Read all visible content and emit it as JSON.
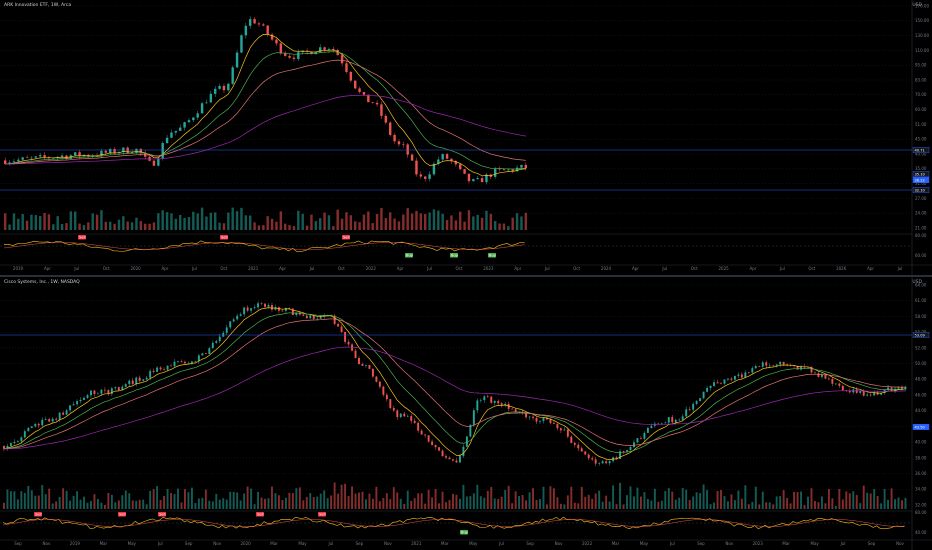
{
  "colors": {
    "background": "#000000",
    "candle_up": "#26a69a",
    "candle_down": "#ef5350",
    "ma_fast": "#f7c31d",
    "ma_mid": "#4caf50",
    "ma_slow": "#e57373",
    "ma_long": "#9c27b0",
    "level_line": "#2962ff",
    "sell_tag": "#f23645",
    "buy_tag": "#4caf50",
    "grid": "#1e222d"
  },
  "top_chart": {
    "legend": "ARK Innovation ETF, 1W, Arca",
    "unit": "USD",
    "price_ticks": [
      "170.00",
      "150.00",
      "130.00",
      "110.00",
      "95.00",
      "83.00",
      "70.00",
      "60.00",
      "51.00",
      "45.00",
      "40.00",
      "35.00",
      "31.00",
      "27.00",
      "24.00",
      "21.00"
    ],
    "price_tags": [
      {
        "label": "40.71",
        "kind": "level",
        "value": 40.71
      },
      {
        "label": "35.10",
        "kind": "level",
        "value": 35.1
      },
      {
        "label": "36.22",
        "kind": "last",
        "value": 36.22
      },
      {
        "label": "32.10",
        "kind": "level",
        "value": 32.1
      }
    ],
    "time_ticks": [
      "2019",
      "Apr",
      "Jul",
      "Oct",
      "2020",
      "Apr",
      "Jul",
      "Oct",
      "2021",
      "Apr",
      "Jul",
      "Oct",
      "2022",
      "Apr",
      "Jul",
      "Oct",
      "2023",
      "Apr",
      "Jul",
      "Oct",
      "2024",
      "Apr",
      "Jul",
      "Oct",
      "2025",
      "Apr",
      "Jul",
      "Oct",
      "2026",
      "Apr",
      "Jul"
    ],
    "indicator_tags": [
      {
        "label": "Sell",
        "kind": "sell"
      },
      {
        "label": "Sell",
        "kind": "sell"
      },
      {
        "label": "Sell",
        "kind": "sell"
      },
      {
        "label": "Buy",
        "kind": "buy"
      },
      {
        "label": "Buy",
        "kind": "buy"
      },
      {
        "label": "Buy",
        "kind": "buy"
      }
    ],
    "osc_ticks": [
      "80.00",
      "60.00"
    ]
  },
  "bottom_chart": {
    "legend": "Cisco Systems, Inc., 1W, NASDAQ",
    "unit": "USD",
    "price_ticks": [
      "64.00",
      "61.00",
      "58.00",
      "55.00",
      "52.00",
      "50.00",
      "48.00",
      "46.00",
      "44.00",
      "42.00",
      "40.00",
      "38.00",
      "36.00",
      "34.00",
      "32.00"
    ],
    "price_tags": [
      {
        "label": "53.09",
        "kind": "level",
        "value": 53.09
      },
      {
        "label": "43.50",
        "kind": "last",
        "value": 43.5
      }
    ],
    "time_ticks": [
      "Sep",
      "Nov",
      "2019",
      "Mar",
      "May",
      "Jul",
      "Sep",
      "Nov",
      "2020",
      "Mar",
      "May",
      "Jul",
      "Sep",
      "Nov",
      "2021",
      "Mar",
      "May",
      "Jul",
      "Sep",
      "Nov",
      "2022",
      "Mar",
      "May",
      "Jul",
      "Sep",
      "Nov",
      "2023",
      "Mar",
      "May",
      "Jul",
      "Sep",
      "Nov"
    ],
    "indicator_tags": [
      {
        "label": "Sell",
        "kind": "sell"
      },
      {
        "label": "Sell",
        "kind": "sell"
      },
      {
        "label": "Sell",
        "kind": "sell"
      },
      {
        "label": "Sell",
        "kind": "sell"
      },
      {
        "label": "Sell",
        "kind": "sell"
      },
      {
        "label": "Buy",
        "kind": "buy"
      }
    ],
    "osc_ticks": [
      "80.00",
      "40.00"
    ]
  }
}
